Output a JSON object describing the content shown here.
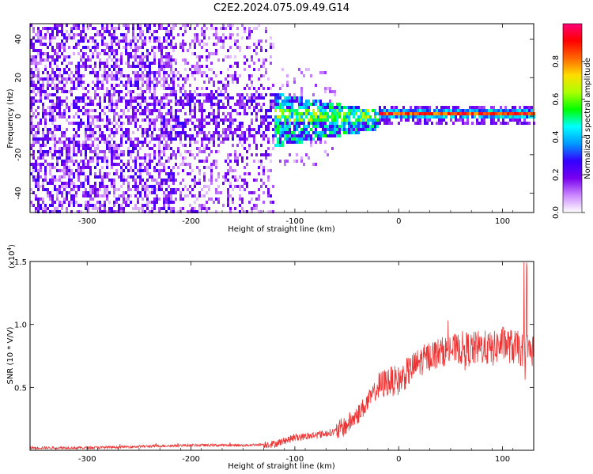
{
  "title": "C2E2.2024.075.09.49.G14",
  "chart_data": [
    {
      "type": "heatmap",
      "title": "C2E2.2024.075.09.49.G14",
      "xlabel": "Height of straight line (km)",
      "ylabel": "Frequency (Hz)",
      "xlim": [
        -355,
        130
      ],
      "ylim": [
        -50,
        48
      ],
      "xticks": [
        -300,
        -200,
        -100,
        0,
        100
      ],
      "xtick_labels": [
        "-300",
        "-200",
        "-100",
        "0",
        "100"
      ],
      "yticks": [
        -40,
        -20,
        0,
        20,
        40
      ],
      "ytick_labels": [
        "-40",
        "-20",
        "0",
        "20",
        "40"
      ],
      "colorbar": {
        "label": "Normalized spectral amplitude",
        "range": [
          0.0,
          1.0
        ],
        "ticks": [
          0.0,
          0.2,
          0.4,
          0.6,
          0.8
        ],
        "tick_labels": [
          "0.0",
          "0.2",
          "0.4",
          "0.6",
          "0.8"
        ],
        "colors": [
          "#ffffff",
          "#cc88ff",
          "#7700ee",
          "#3300ff",
          "#0099ff",
          "#00ffff",
          "#00ff00",
          "#aaff00",
          "#ffdd00",
          "#ff6600",
          "#ff0000",
          "#ff0077"
        ]
      },
      "regions": [
        {
          "name": "diffuse broadband noise",
          "x_range": [
            -355,
            -120
          ],
          "freq_range": [
            -50,
            48
          ],
          "typical_amplitude": 0.1
        },
        {
          "name": "narrowing band",
          "x_range": [
            -120,
            -20
          ],
          "freq_range": [
            -15,
            10
          ],
          "typical_amplitude": 0.35
        },
        {
          "name": "narrow carrier line",
          "x_range": [
            -20,
            130
          ],
          "center_freq": 1,
          "halfwidth_freq": 3,
          "peak_amplitude": 0.9
        }
      ]
    },
    {
      "type": "line",
      "xlabel": "Height of straight line (km)",
      "ylabel": "SNR (10 * V/V)",
      "yscale_label": "(x10",
      "yscale_exponent": "4",
      "yscale_suffix": ")",
      "xlim": [
        -355,
        130
      ],
      "ylim": [
        0,
        1.5
      ],
      "xticks": [
        -300,
        -200,
        -100,
        0,
        100
      ],
      "xtick_labels": [
        "-300",
        "-200",
        "-100",
        "0",
        "100"
      ],
      "yticks": [
        0.5,
        1.0,
        1.5
      ],
      "ytick_labels": [
        "0.5",
        "1.0",
        "1.5"
      ],
      "series": [
        {
          "name": "SNR",
          "color": "#ee3333",
          "x": [
            -355,
            -300,
            -250,
            -200,
            -150,
            -120,
            -100,
            -80,
            -60,
            -50,
            -40,
            -30,
            -20,
            -10,
            0,
            10,
            20,
            30,
            40,
            50,
            60,
            70,
            80,
            90,
            100,
            110,
            120,
            130
          ],
          "y": [
            0.02,
            0.02,
            0.03,
            0.04,
            0.04,
            0.05,
            0.1,
            0.12,
            0.15,
            0.2,
            0.28,
            0.38,
            0.5,
            0.55,
            0.55,
            0.63,
            0.7,
            0.75,
            0.78,
            0.8,
            0.81,
            0.8,
            0.82,
            0.8,
            0.85,
            0.82,
            0.8,
            0.8
          ]
        }
      ]
    }
  ]
}
